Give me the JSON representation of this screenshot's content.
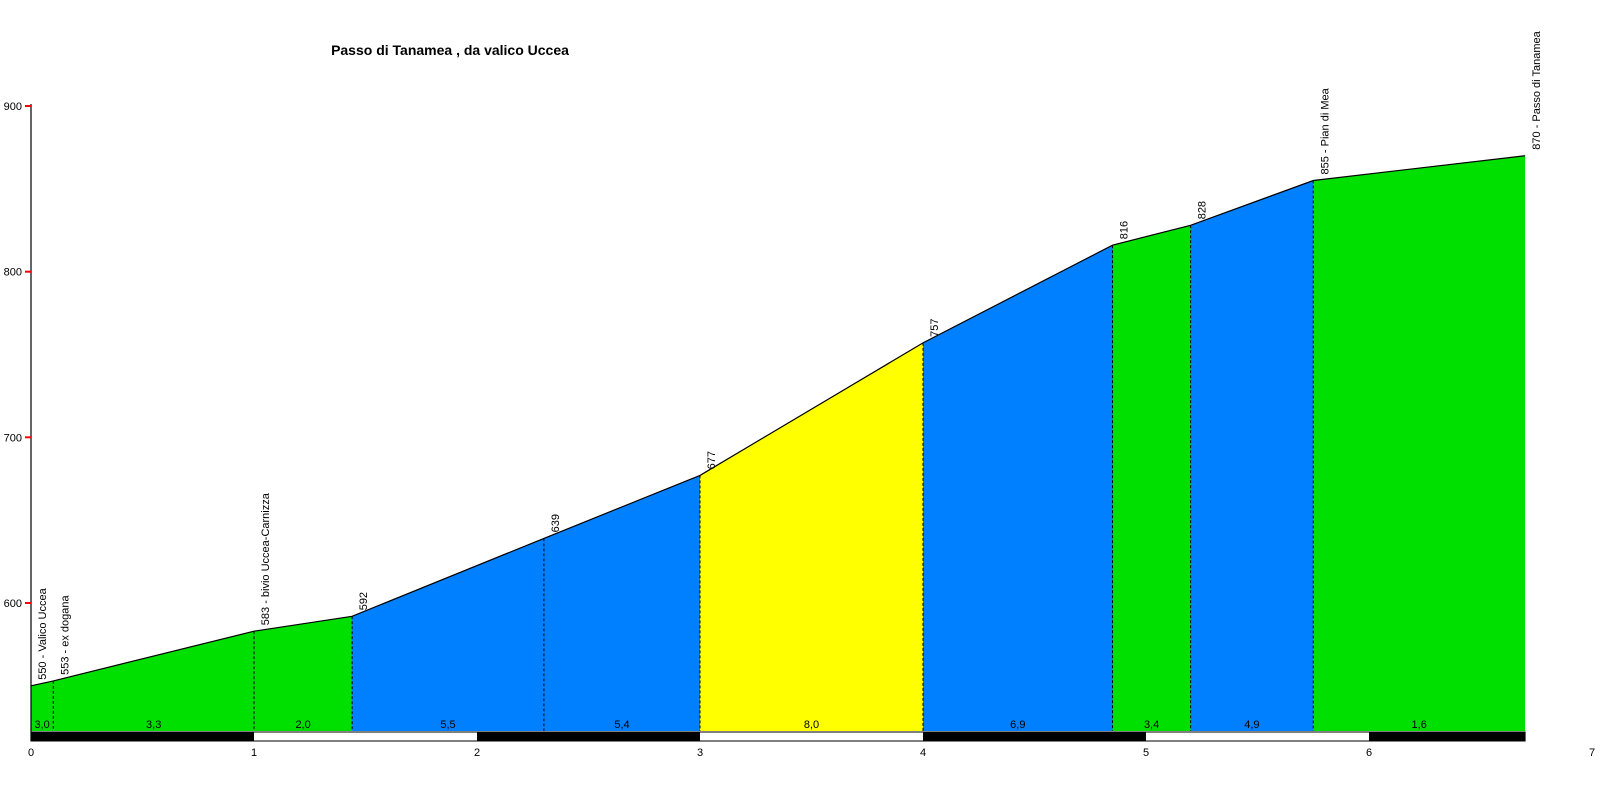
{
  "chart_data": {
    "type": "area",
    "title": "Passo di Tanamea , da valico Uccea",
    "xlabel": "",
    "ylabel": "",
    "x_unit": "km",
    "y_unit": "m",
    "xlim": [
      0,
      7
    ],
    "x_ticks": [
      0,
      1,
      2,
      3,
      4,
      5,
      6,
      7
    ],
    "y_ticks": [
      600,
      700,
      800,
      900
    ],
    "grid": false,
    "legend": false,
    "points": [
      {
        "km": 0.0,
        "elev": 550,
        "label": "550 - Valico Uccea"
      },
      {
        "km": 0.1,
        "elev": 553,
        "label": "553 - ex dogana"
      },
      {
        "km": 1.0,
        "elev": 583,
        "label": "583 - bivio Uccea-Carnizza"
      },
      {
        "km": 1.44,
        "elev": 592,
        "label": "592"
      },
      {
        "km": 2.3,
        "elev": 639,
        "label": "639"
      },
      {
        "km": 3.0,
        "elev": 677,
        "label": "677"
      },
      {
        "km": 4.0,
        "elev": 757,
        "label": "757"
      },
      {
        "km": 4.85,
        "elev": 816,
        "label": "816"
      },
      {
        "km": 5.2,
        "elev": 828,
        "label": "828"
      },
      {
        "km": 5.75,
        "elev": 855,
        "label": "855 - Pian di Mea"
      },
      {
        "km": 6.7,
        "elev": 870,
        "label": "870 - Passo di Tanamea"
      }
    ],
    "segments": [
      {
        "from_km": 0.0,
        "to_km": 0.1,
        "grade": "3,0",
        "color": "green"
      },
      {
        "from_km": 0.1,
        "to_km": 1.0,
        "grade": "3,3",
        "color": "green"
      },
      {
        "from_km": 1.0,
        "to_km": 1.44,
        "grade": "2,0",
        "color": "green"
      },
      {
        "from_km": 1.44,
        "to_km": 2.3,
        "grade": "5,5",
        "color": "blue"
      },
      {
        "from_km": 2.3,
        "to_km": 3.0,
        "grade": "5,4",
        "color": "blue"
      },
      {
        "from_km": 3.0,
        "to_km": 4.0,
        "grade": "8,0",
        "color": "yellow"
      },
      {
        "from_km": 4.0,
        "to_km": 4.85,
        "grade": "6,9",
        "color": "blue"
      },
      {
        "from_km": 4.85,
        "to_km": 5.2,
        "grade": "3,4",
        "color": "green"
      },
      {
        "from_km": 5.2,
        "to_km": 5.75,
        "grade": "4,9",
        "color": "blue"
      },
      {
        "from_km": 5.75,
        "to_km": 6.7,
        "grade": "1,6",
        "color": "green"
      }
    ],
    "colors": {
      "green": "#00E000",
      "blue": "#0080FF",
      "yellow": "#FFFF00",
      "line": "#000000",
      "axis": "#000000",
      "tick": "#FF0000",
      "bar_dark": "#000000",
      "bar_light": "#FFFFFF",
      "background": "#FFFFFF"
    }
  }
}
